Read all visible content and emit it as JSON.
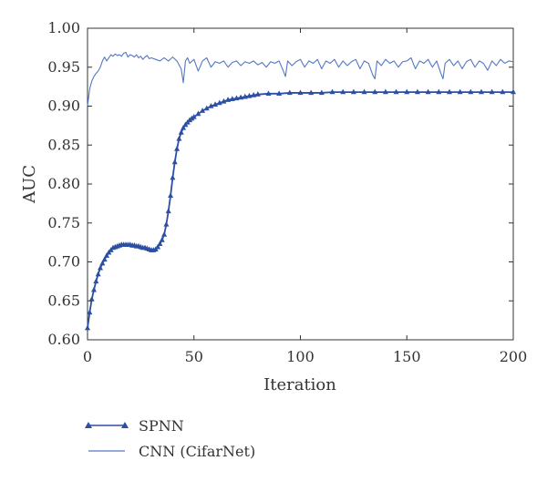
{
  "chart_data": {
    "type": "line",
    "xlabel": "Iteration",
    "ylabel": "AUC",
    "xlim": [
      0,
      200
    ],
    "ylim": [
      0.6,
      1.0
    ],
    "x_ticks": [
      "0",
      "50",
      "100",
      "150",
      "200"
    ],
    "y_ticks": [
      "0.60",
      "0.65",
      "0.70",
      "0.75",
      "0.80",
      "0.85",
      "0.90",
      "0.95",
      "1.00"
    ],
    "grid": false,
    "legend_placement": "bottom-left",
    "series": [
      {
        "name": "SPNN",
        "color": "#2c4fa3",
        "marker": "triangle",
        "x": [
          0,
          1,
          2,
          3,
          4,
          5,
          6,
          7,
          8,
          9,
          10,
          11,
          12,
          13,
          14,
          15,
          16,
          17,
          18,
          19,
          20,
          21,
          22,
          23,
          24,
          25,
          26,
          27,
          28,
          29,
          30,
          31,
          32,
          33,
          34,
          35,
          36,
          37,
          38,
          39,
          40,
          41,
          42,
          43,
          44,
          45,
          46,
          47,
          48,
          49,
          50,
          52,
          54,
          56,
          58,
          60,
          62,
          64,
          66,
          68,
          70,
          72,
          74,
          76,
          78,
          80,
          85,
          90,
          95,
          100,
          105,
          110,
          115,
          120,
          125,
          130,
          135,
          140,
          145,
          150,
          155,
          160,
          165,
          170,
          175,
          180,
          185,
          190,
          195,
          200
        ],
        "y": [
          0.615,
          0.635,
          0.652,
          0.664,
          0.675,
          0.684,
          0.692,
          0.698,
          0.703,
          0.708,
          0.712,
          0.715,
          0.718,
          0.719,
          0.72,
          0.721,
          0.722,
          0.722,
          0.722,
          0.722,
          0.722,
          0.721,
          0.721,
          0.72,
          0.72,
          0.719,
          0.718,
          0.718,
          0.717,
          0.716,
          0.715,
          0.715,
          0.716,
          0.719,
          0.723,
          0.728,
          0.735,
          0.748,
          0.765,
          0.785,
          0.808,
          0.828,
          0.845,
          0.858,
          0.866,
          0.872,
          0.876,
          0.879,
          0.882,
          0.884,
          0.886,
          0.89,
          0.894,
          0.897,
          0.9,
          0.902,
          0.904,
          0.906,
          0.908,
          0.909,
          0.91,
          0.911,
          0.912,
          0.913,
          0.914,
          0.915,
          0.916,
          0.916,
          0.917,
          0.917,
          0.917,
          0.917,
          0.918,
          0.918,
          0.918,
          0.918,
          0.918,
          0.918,
          0.918,
          0.918,
          0.918,
          0.918,
          0.918,
          0.918,
          0.918,
          0.918,
          0.918,
          0.918,
          0.918,
          0.918
        ]
      },
      {
        "name": "CNN (CifarNet)",
        "color": "#5577c4",
        "marker": "none",
        "x": [
          0,
          1,
          2,
          3,
          4,
          5,
          6,
          7,
          8,
          9,
          10,
          11,
          12,
          13,
          14,
          15,
          16,
          17,
          18,
          19,
          20,
          21,
          22,
          23,
          24,
          25,
          26,
          27,
          28,
          29,
          30,
          32,
          34,
          36,
          38,
          40,
          42,
          44,
          45,
          46,
          47,
          48,
          50,
          52,
          54,
          56,
          58,
          60,
          62,
          64,
          66,
          68,
          70,
          72,
          74,
          76,
          78,
          80,
          82,
          84,
          86,
          88,
          90,
          92,
          93,
          94,
          96,
          98,
          100,
          102,
          104,
          106,
          108,
          110,
          112,
          114,
          116,
          118,
          120,
          122,
          124,
          126,
          128,
          130,
          132,
          134,
          135,
          136,
          138,
          140,
          142,
          144,
          146,
          148,
          150,
          152,
          154,
          156,
          158,
          160,
          162,
          164,
          166,
          167,
          168,
          170,
          172,
          174,
          176,
          178,
          180,
          182,
          184,
          186,
          188,
          190,
          192,
          194,
          196,
          198,
          200
        ],
        "y": [
          0.9,
          0.922,
          0.932,
          0.938,
          0.942,
          0.945,
          0.95,
          0.958,
          0.963,
          0.958,
          0.962,
          0.966,
          0.964,
          0.967,
          0.965,
          0.966,
          0.964,
          0.968,
          0.969,
          0.963,
          0.966,
          0.965,
          0.963,
          0.966,
          0.962,
          0.964,
          0.96,
          0.963,
          0.965,
          0.961,
          0.962,
          0.96,
          0.958,
          0.962,
          0.958,
          0.963,
          0.958,
          0.948,
          0.93,
          0.958,
          0.962,
          0.955,
          0.96,
          0.945,
          0.958,
          0.962,
          0.95,
          0.957,
          0.955,
          0.958,
          0.95,
          0.956,
          0.958,
          0.952,
          0.957,
          0.955,
          0.958,
          0.953,
          0.956,
          0.95,
          0.957,
          0.955,
          0.958,
          0.945,
          0.938,
          0.958,
          0.952,
          0.957,
          0.96,
          0.95,
          0.958,
          0.955,
          0.96,
          0.948,
          0.958,
          0.955,
          0.96,
          0.95,
          0.958,
          0.952,
          0.957,
          0.96,
          0.948,
          0.958,
          0.955,
          0.94,
          0.935,
          0.958,
          0.952,
          0.96,
          0.955,
          0.958,
          0.95,
          0.957,
          0.958,
          0.962,
          0.948,
          0.958,
          0.955,
          0.96,
          0.95,
          0.958,
          0.942,
          0.935,
          0.955,
          0.96,
          0.952,
          0.958,
          0.948,
          0.957,
          0.96,
          0.95,
          0.958,
          0.955,
          0.946,
          0.958,
          0.952,
          0.96,
          0.955,
          0.958,
          0.957
        ]
      }
    ]
  }
}
